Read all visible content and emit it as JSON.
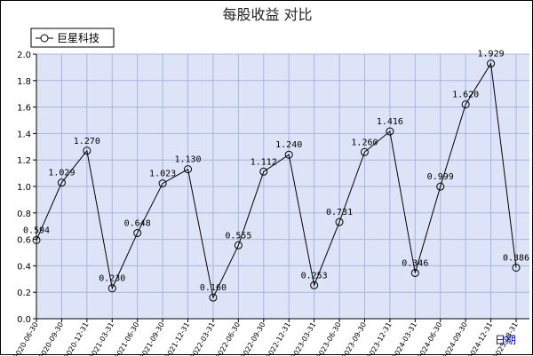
{
  "chart_data": {
    "type": "line",
    "title": "每股收益  对比",
    "xlabel": "日期",
    "ylabel": "",
    "ylim": [
      0.0,
      2.0
    ],
    "yticks": [
      "0.0",
      "0.2",
      "0.4",
      "0.6",
      "0.8",
      "1.0",
      "1.2",
      "1.4",
      "1.6",
      "1.8",
      "2.0"
    ],
    "grid": true,
    "legend_position": "top-left",
    "colors": {
      "plot_bg": "#dde4f8",
      "grid": "#aab4dd",
      "line": "#000000",
      "title": "#222222",
      "xlabel": "#0000cc"
    },
    "categories": [
      "2020-06-30",
      "2020-09-30",
      "2020-12-31",
      "2021-03-31",
      "2021-06-30",
      "2021-09-30",
      "2021-12-31",
      "2022-03-31",
      "2022-06-30",
      "2022-09-30",
      "2022-12-31",
      "2023-03-31",
      "2023-06-30",
      "2023-09-30",
      "2023-12-31",
      "2024-03-31",
      "2024-06-30",
      "2024-09-30",
      "2024-12-31",
      "2025-03-31"
    ],
    "category_labels": [
      "2020-06-30",
      "2020-09-30",
      "2020-12-31",
      "2021-03-31",
      "2021-06-30",
      "2021-09-30",
      "2021-12-31",
      "2022-03-31",
      "2022-06-30",
      "2022-09-30",
      "2022-12-31",
      "2023-03-31",
      "2023-06-30",
      "2023-09-30",
      "2023-12-31",
      "2024-03-31",
      "2024-06-30",
      "2024-09-30",
      "2024-12-31",
      "2025-03-31"
    ],
    "series": [
      {
        "name": "巨星科技",
        "values": [
          0.594,
          1.029,
          1.27,
          0.23,
          0.648,
          1.023,
          1.13,
          0.16,
          0.555,
          1.112,
          1.24,
          0.253,
          0.731,
          1.26,
          1.416,
          0.346,
          0.999,
          1.62,
          1.929,
          0.386
        ],
        "labels": [
          "0.594",
          "1.029",
          "1.270",
          "0.230",
          "0.648",
          "1.023",
          "1.130",
          "0.160",
          "0.555",
          "1.112",
          "1.240",
          "0.253",
          "0.731",
          "1.260",
          "1.416",
          "0.346",
          "0.999",
          "1.620",
          "1.929",
          "0.386"
        ]
      }
    ]
  }
}
